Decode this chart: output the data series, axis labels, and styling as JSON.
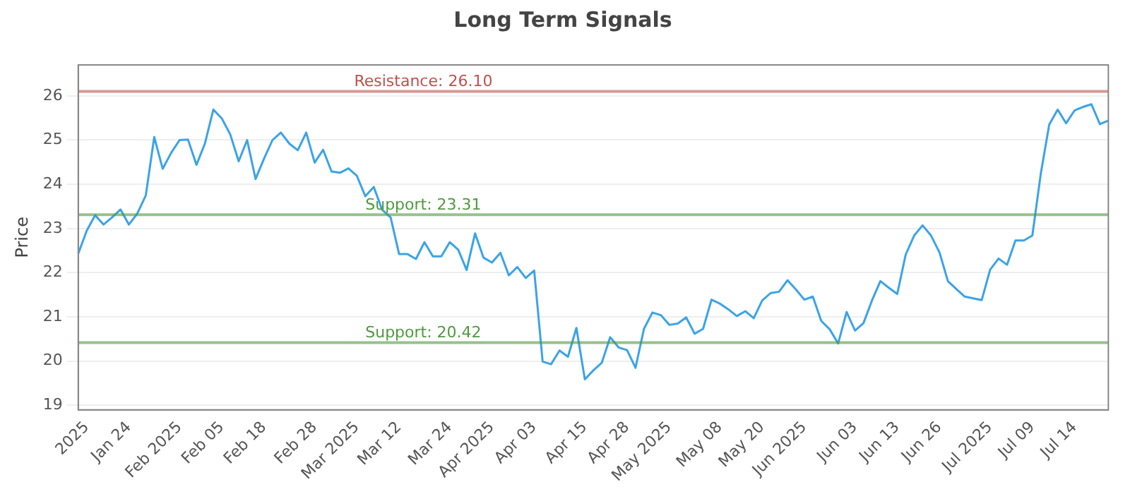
{
  "chart_data": {
    "type": "line",
    "title": "Long Term Signals",
    "ylabel": "Price",
    "categories": [
      null,
      "2025",
      null,
      null,
      null,
      null,
      "Jan 24",
      null,
      null,
      null,
      null,
      null,
      "Feb 2025",
      null,
      null,
      null,
      null,
      "Feb 05",
      null,
      null,
      null,
      null,
      "Feb 18",
      null,
      null,
      null,
      null,
      null,
      "Feb 28",
      null,
      null,
      null,
      null,
      "Mar 2025",
      null,
      null,
      null,
      null,
      "Mar 12",
      null,
      null,
      null,
      null,
      null,
      "Mar 24",
      null,
      null,
      null,
      null,
      "Apr 2025",
      null,
      null,
      null,
      null,
      "Apr 03",
      null,
      null,
      null,
      null,
      null,
      "Apr 15",
      null,
      null,
      null,
      null,
      "Apr 28",
      null,
      null,
      null,
      null,
      "May 2025",
      null,
      null,
      null,
      null,
      null,
      "May 08",
      null,
      null,
      null,
      null,
      "May 20",
      null,
      null,
      null,
      null,
      "Jun 2025",
      null,
      null,
      null,
      null,
      null,
      "Jun 03",
      null,
      null,
      null,
      null,
      "Jun 13",
      null,
      null,
      null,
      null,
      "Jun 26",
      null,
      null,
      null,
      null,
      null,
      "Jul 2025",
      null,
      null,
      null,
      null,
      "Jul 09",
      null,
      null,
      null,
      null,
      "Jul 14",
      null,
      null,
      null,
      null
    ],
    "series": [
      {
        "color": "#3ba3e8",
        "values": [
          22.43,
          22.95,
          23.3,
          23.09,
          23.25,
          23.43,
          23.09,
          23.34,
          23.75,
          25.07,
          24.35,
          24.71,
          25.0,
          25.01,
          24.44,
          24.92,
          25.69,
          25.49,
          25.13,
          24.52,
          25.0,
          24.12,
          24.58,
          25.0,
          25.17,
          24.92,
          24.77,
          25.17,
          24.49,
          24.78,
          24.29,
          24.26,
          24.36,
          24.19,
          23.73,
          23.94,
          23.42,
          23.25,
          22.42,
          22.42,
          22.31,
          22.69,
          22.37,
          22.37,
          22.69,
          22.52,
          22.06,
          22.89,
          22.34,
          22.23,
          22.45,
          21.94,
          22.13,
          21.88,
          22.05,
          19.99,
          19.93,
          20.24,
          20.1,
          20.75,
          19.59,
          19.79,
          19.96,
          20.54,
          20.31,
          20.25,
          19.85,
          20.73,
          21.1,
          21.04,
          20.82,
          20.85,
          20.99,
          20.62,
          20.73,
          21.39,
          21.3,
          21.17,
          21.02,
          21.13,
          20.97,
          21.37,
          21.54,
          21.57,
          21.83,
          21.62,
          21.39,
          21.46,
          20.91,
          20.72,
          20.4,
          21.11,
          20.69,
          20.86,
          21.37,
          21.81,
          21.66,
          21.52,
          22.41,
          22.84,
          23.07,
          22.84,
          22.46,
          21.81,
          21.63,
          21.46,
          21.42,
          21.38,
          22.07,
          22.32,
          22.18,
          22.73,
          22.73,
          22.84,
          24.24,
          25.35,
          25.69,
          25.38,
          25.67,
          25.75,
          25.81,
          25.36,
          25.44
        ]
      }
    ],
    "ylim": [
      18.9,
      26.7
    ],
    "yticks": [
      19,
      20,
      21,
      22,
      23,
      24,
      25,
      26
    ],
    "grid": "y",
    "legend": false,
    "marker": "none",
    "line_style": "solid",
    "ref_lines": [
      {
        "axis": "y",
        "value": 26.1,
        "label": "Resistance: 26.10",
        "color": "#c0504d"
      },
      {
        "axis": "y",
        "value": 23.31,
        "label": "Support: 23.31",
        "color": "#4e9a3e"
      },
      {
        "axis": "y",
        "value": 20.42,
        "label": "Support: 20.42",
        "color": "#4e9a3e"
      }
    ]
  }
}
